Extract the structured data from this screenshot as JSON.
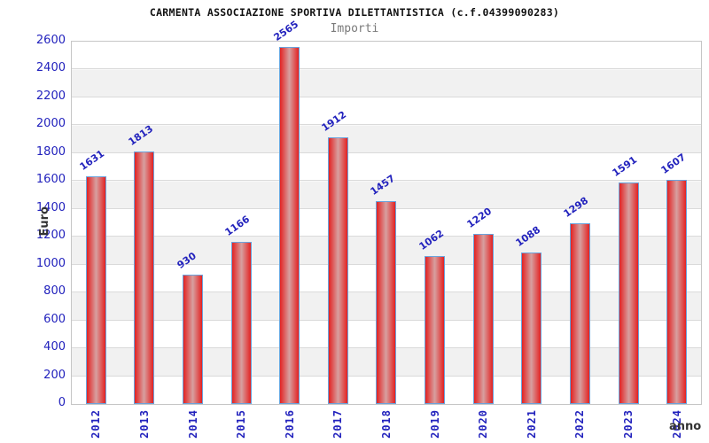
{
  "chart": {
    "title": "CARMENTA ASSOCIAZIONE SPORTIVA DILETTANTISTICA (c.f.04399090283)",
    "subtitle": "Importi",
    "ylabel": "Euro",
    "xlabel": "anno"
  },
  "chart_data": {
    "type": "bar",
    "title": "CARMENTA ASSOCIAZIONE SPORTIVA DILETTANTISTICA (c.f.04399090283)",
    "subtitle": "Importi",
    "xlabel": "anno",
    "ylabel": "Euro",
    "categories": [
      "2012",
      "2013",
      "2014",
      "2015",
      "2016",
      "2017",
      "2018",
      "2019",
      "2020",
      "2021",
      "2022",
      "2023",
      "2024"
    ],
    "values": [
      1631,
      1813,
      930,
      1166,
      2565,
      1912,
      1457,
      1062,
      1220,
      1088,
      1298,
      1591,
      1607
    ],
    "ylim": [
      0,
      2600
    ],
    "ytick_step": 200,
    "grid": true,
    "legend": "none",
    "colors": {
      "bar_edge_red": "#e32222",
      "bar_center": "#d7a0a0",
      "bar_border": "#6aa3dc",
      "axis_label_blue": "#2222bd",
      "band_gray": "#f1f1f1",
      "gridline": "#dadada",
      "plot_border": "#c6c6c6",
      "title_color": "#111111",
      "subtitle_color": "#7a7a7a",
      "axis_title_color": "#333333"
    }
  }
}
